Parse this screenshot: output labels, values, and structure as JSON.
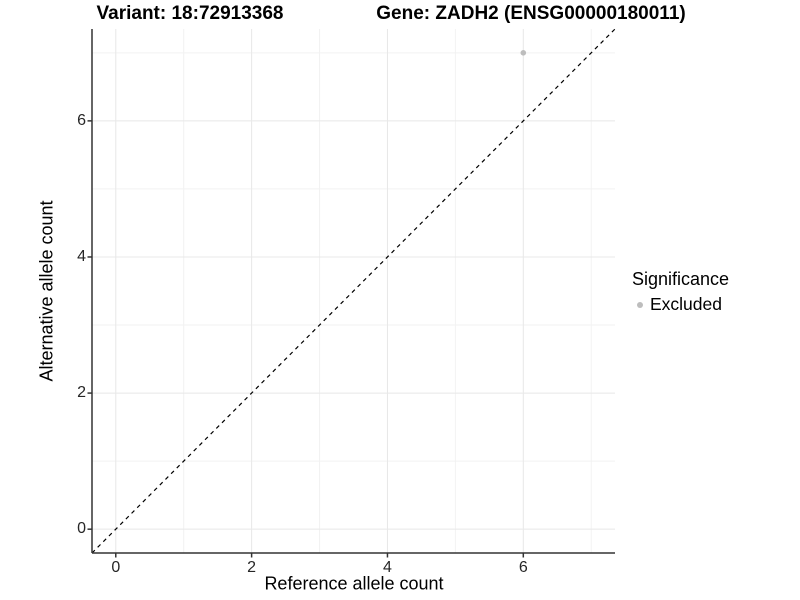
{
  "chart_data": {
    "type": "scatter",
    "title_left": "Variant: 18:72913368",
    "title_right": "Gene: ZADH2 (ENSG00000180011)",
    "xlabel": "Reference allele count",
    "ylabel": "Alternative allele count",
    "xlim": [
      -0.35,
      7.35
    ],
    "ylim": [
      -0.35,
      7.35
    ],
    "x_major_ticks": [
      0,
      2,
      4,
      6
    ],
    "y_major_ticks": [
      0,
      2,
      4,
      6
    ],
    "x_minor_gridlines": [
      1,
      3,
      5,
      7
    ],
    "y_minor_gridlines": [
      1,
      3,
      5,
      7
    ],
    "grid": "major-and-minor",
    "points": [
      {
        "x": 6,
        "y": 7,
        "series": "Excluded"
      }
    ],
    "point_style": {
      "radius": 2.8,
      "color": "#bdbdbd"
    },
    "identity_line": {
      "slope": 1,
      "intercept": 0,
      "style": "dashed",
      "color": "#000000"
    },
    "legend": {
      "title": "Significance",
      "position": "right",
      "entries": [
        {
          "label": "Excluded",
          "marker": "circle",
          "color": "#bdbdbd"
        }
      ]
    },
    "colors": {
      "background": "#ffffff",
      "grid_major": "#e8e8e8",
      "grid_minor": "#f2f2f2",
      "axis_line": "#333333",
      "tick_mark": "#333333",
      "tick_label": "#262626",
      "title": "#000000"
    }
  }
}
